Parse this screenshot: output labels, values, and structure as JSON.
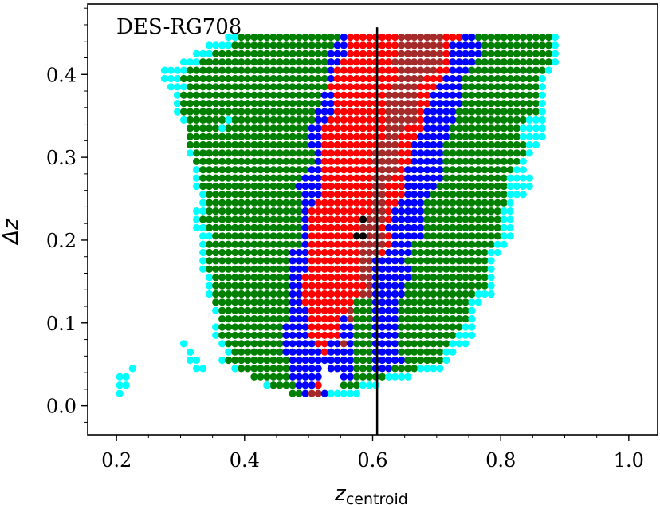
{
  "chart_data": {
    "type": "scatter",
    "title": "DES-RG708",
    "xlabel": {
      "main": "z",
      "sub": "centroid"
    },
    "ylabel": "Δz",
    "xlim": [
      0.155,
      1.045
    ],
    "ylim": [
      -0.035,
      0.485
    ],
    "x_ticks": [
      "0.2",
      "0.4",
      "0.6",
      "0.8",
      "1.0"
    ],
    "y_ticks": [
      "0.0",
      "0.1",
      "0.2",
      "0.3",
      "0.4"
    ],
    "x_tick_values": [
      0.2,
      0.4,
      0.6,
      0.8,
      1.0
    ],
    "y_tick_values": [
      0.0,
      0.1,
      0.2,
      0.3,
      0.4
    ],
    "grid": false,
    "vline_x": 0.607,
    "marker_step": {
      "x": 0.01,
      "y": 0.01
    },
    "point_colors": {
      "cyan": "#00ffff",
      "green": "#008000",
      "blue": "#0000ff",
      "red": "#ff0000",
      "brown": "#a52a2a",
      "black": "#000000"
    },
    "color_order": [
      "cyan",
      "green",
      "blue",
      "red",
      "brown",
      "black"
    ],
    "y_bands": [
      0.01,
      0.05,
      0.1,
      0.15,
      0.2,
      0.25,
      0.3,
      0.35,
      0.4,
      0.45
    ],
    "region_bounds": {
      "cyan_left": [
        0.48,
        0.36,
        0.35,
        0.34,
        0.33,
        0.32,
        0.31,
        0.3,
        0.27,
        0.37
      ],
      "cyan_right": [
        0.56,
        0.73,
        0.76,
        0.79,
        0.81,
        0.83,
        0.85,
        0.87,
        0.88,
        0.89
      ],
      "green_left": [
        0.48,
        0.37,
        0.36,
        0.35,
        0.34,
        0.33,
        0.32,
        0.31,
        0.3,
        0.41
      ],
      "green_right": [
        0.5,
        0.7,
        0.74,
        0.77,
        0.79,
        0.81,
        0.83,
        0.85,
        0.87,
        0.88
      ],
      "blue_left": [
        0.49,
        0.47,
        0.46,
        0.47,
        0.48,
        0.49,
        0.5,
        0.51,
        0.53,
        0.55
      ],
      "blue_right": [
        0.5,
        0.64,
        0.64,
        0.65,
        0.67,
        0.69,
        0.71,
        0.73,
        0.75,
        0.77
      ],
      "red_left": [
        0.5,
        0.52,
        0.5,
        0.49,
        0.5,
        0.51,
        0.52,
        0.53,
        0.54,
        0.56
      ],
      "red_right": [
        0.51,
        0.52,
        0.55,
        0.59,
        0.62,
        0.64,
        0.66,
        0.68,
        0.71,
        0.74
      ],
      "brown_left": [
        0.5,
        0.53,
        0.56,
        0.58,
        0.58,
        0.6,
        0.61,
        0.62,
        0.63,
        0.64
      ],
      "brown_right": [
        0.51,
        0.53,
        0.57,
        0.6,
        0.61,
        0.62,
        0.64,
        0.66,
        0.69,
        0.72
      ]
    },
    "holes": [
      {
        "x": [
          0.52,
          0.53
        ],
        "y": [
          0.02,
          0.05
        ]
      },
      {
        "x": [
          0.52,
          0.55
        ],
        "y": [
          0.02,
          0.04
        ]
      }
    ],
    "extra_points": [
      {
        "x": 0.205,
        "y": 0.015,
        "color": "cyan"
      },
      {
        "x": 0.205,
        "y": 0.025,
        "color": "cyan"
      },
      {
        "x": 0.205,
        "y": 0.035,
        "color": "cyan"
      },
      {
        "x": 0.215,
        "y": 0.025,
        "color": "cyan"
      },
      {
        "x": 0.215,
        "y": 0.035,
        "color": "cyan"
      },
      {
        "x": 0.225,
        "y": 0.045,
        "color": "cyan"
      },
      {
        "x": 0.305,
        "y": 0.075,
        "color": "cyan"
      },
      {
        "x": 0.315,
        "y": 0.065,
        "color": "cyan"
      },
      {
        "x": 0.315,
        "y": 0.055,
        "color": "cyan"
      },
      {
        "x": 0.325,
        "y": 0.045,
        "color": "cyan"
      },
      {
        "x": 0.325,
        "y": 0.055,
        "color": "cyan"
      },
      {
        "x": 0.335,
        "y": 0.045,
        "color": "cyan"
      },
      {
        "x": 0.435,
        "y": 0.025,
        "color": "cyan"
      },
      {
        "x": 0.365,
        "y": 0.335,
        "color": "cyan"
      },
      {
        "x": 0.375,
        "y": 0.345,
        "color": "cyan"
      },
      {
        "x": 0.585,
        "y": 0.225,
        "color": "black"
      },
      {
        "x": 0.575,
        "y": 0.205,
        "color": "black"
      },
      {
        "x": 0.585,
        "y": 0.205,
        "color": "black"
      },
      {
        "x": 0.585,
        "y": 0.215,
        "color": "brown"
      },
      {
        "x": 0.595,
        "y": 0.215,
        "color": "brown"
      }
    ]
  }
}
